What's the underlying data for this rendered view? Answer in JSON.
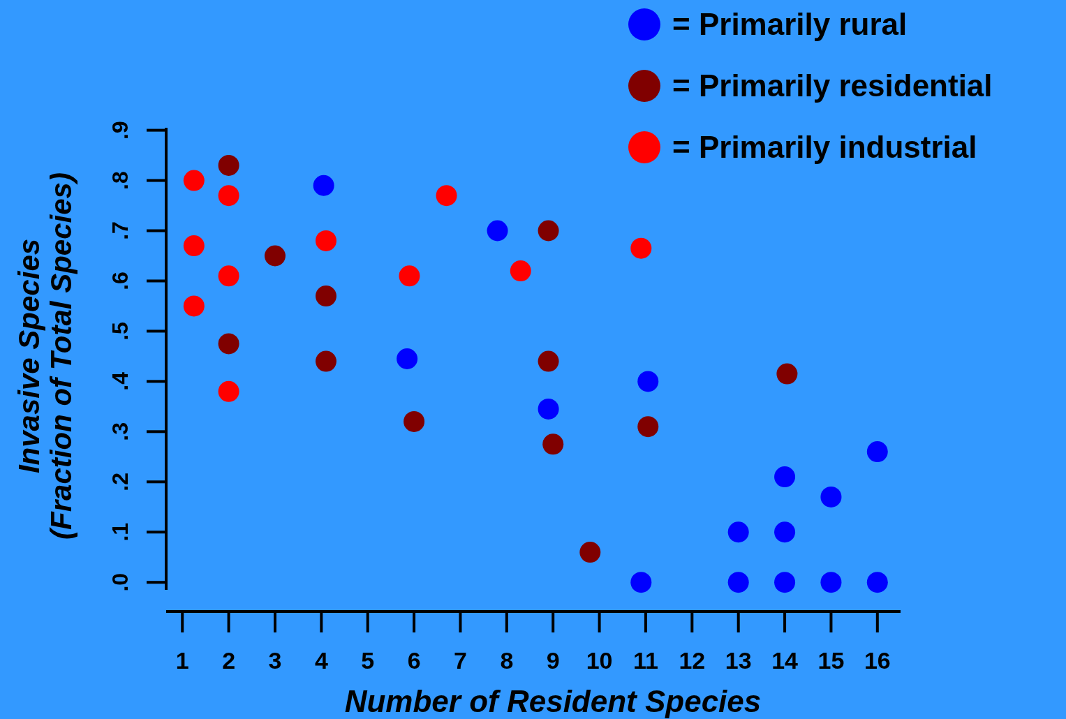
{
  "chart_data": {
    "type": "scatter",
    "xlabel": "Number of Resident Species",
    "ylabel": "Invasive Species\n(Fraction of Total Species)",
    "xlim": [
      0.65,
      16.5
    ],
    "xticks": [
      1,
      2,
      3,
      4,
      5,
      6,
      7,
      8,
      9,
      10,
      11,
      12,
      13,
      14,
      15,
      16
    ],
    "ylim": [
      -0.015,
      0.905
    ],
    "yticks": [
      {
        "value": 0,
        "label": ".0"
      },
      {
        "value": 0.1,
        "label": ".1"
      },
      {
        "value": 0.2,
        "label": ".2"
      },
      {
        "value": 0.3,
        "label": ".3"
      },
      {
        "value": 0.4,
        "label": ".4"
      },
      {
        "value": 0.5,
        "label": ".5"
      },
      {
        "value": 0.6,
        "label": ".6"
      },
      {
        "value": 0.7,
        "label": ".7"
      },
      {
        "value": 0.8,
        "label": ".8"
      },
      {
        "value": 0.9,
        "label": ".9"
      }
    ],
    "grid": false,
    "legend": "top right",
    "marker": "circle",
    "series": [
      {
        "name": "= Primarily rural",
        "color": "#0000ff",
        "x": [
          4.05,
          7.8,
          5.85,
          8.9,
          11.05,
          10.9,
          13,
          13,
          14,
          14,
          14,
          15,
          15,
          16,
          16
        ],
        "values": [
          0.79,
          0.7,
          0.445,
          0.345,
          0.4,
          0,
          0.1,
          0,
          0.21,
          0.1,
          0,
          0.17,
          0,
          0.26,
          0
        ]
      },
      {
        "name": "= Primarily residential",
        "color": "#800000",
        "x": [
          2,
          3,
          4.1,
          4.1,
          2,
          6,
          8.9,
          8.9,
          9,
          9.8,
          11.05,
          14.05
        ],
        "values": [
          0.83,
          0.65,
          0.57,
          0.44,
          0.475,
          0.32,
          0.7,
          0.44,
          0.275,
          0.06,
          0.31,
          0.415
        ]
      },
      {
        "name": "= Primarily industrial",
        "color": "#ff0000",
        "x": [
          1.25,
          1.25,
          1.25,
          2,
          2,
          2,
          4.1,
          5.9,
          6.7,
          8.3,
          10.9
        ],
        "values": [
          0.8,
          0.67,
          0.55,
          0.77,
          0.61,
          0.38,
          0.68,
          0.61,
          0.77,
          0.62,
          0.665
        ]
      }
    ]
  }
}
